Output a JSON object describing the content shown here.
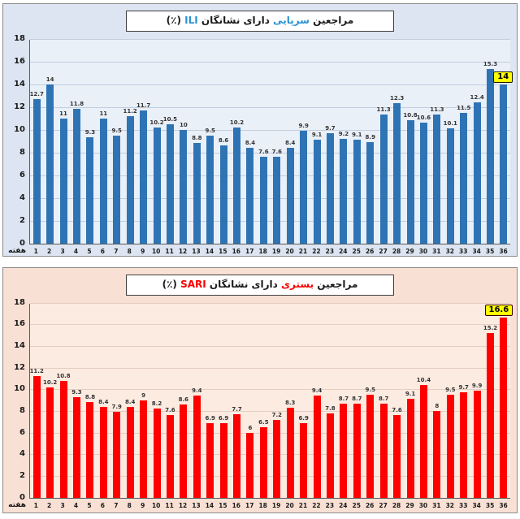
{
  "chart_data": [
    {
      "type": "bar",
      "title_parts": {
        "t1": "مراجعین",
        "t2": "سرپایی",
        "t3": "دارای نشانگان",
        "t4": "ILI",
        "t5": "(٪)"
      },
      "title_plain": "مراجعین سرپایی دارای نشانگان ILI (٪)",
      "accent_color": "#2b93d4",
      "week_label": "هفته",
      "categories": [
        1,
        2,
        3,
        4,
        5,
        6,
        7,
        8,
        9,
        10,
        11,
        12,
        13,
        14,
        15,
        16,
        17,
        18,
        19,
        20,
        21,
        22,
        23,
        24,
        25,
        26,
        27,
        28,
        29,
        30,
        31,
        32,
        33,
        34,
        35,
        36
      ],
      "values": [
        12.7,
        14,
        11,
        11.8,
        9.3,
        11,
        9.5,
        11.2,
        11.7,
        10.2,
        10.5,
        10,
        8.8,
        9.5,
        8.6,
        10.2,
        8.4,
        7.6,
        7.6,
        8.4,
        9.9,
        9.1,
        9.7,
        9.2,
        9.1,
        8.9,
        11.3,
        12.3,
        10.8,
        10.6,
        11.3,
        10.1,
        11.5,
        12.4,
        15.3,
        14
      ],
      "ylim": [
        0,
        18
      ],
      "yticks": [
        0,
        2,
        4,
        6,
        8,
        10,
        12,
        14,
        16,
        18
      ],
      "grid": true,
      "legend_position": "none",
      "xlabel": "هفته",
      "ylabel": "",
      "bar_color": "#2e74b5",
      "panel_bg": "#dce5f1",
      "plot_bg": "#eaf0f8",
      "grid_color": "#c2cedf",
      "highlight": {
        "index": 35,
        "value": 14,
        "bg": "#ffff00",
        "border": "#1a1a00"
      }
    },
    {
      "type": "bar",
      "title_parts": {
        "t1": "مراجعین",
        "t2": "بستری",
        "t3": "دارای نشانگان",
        "t4": "SARI",
        "t5": "(٪)"
      },
      "title_plain": "مراجعین بستری دارای نشانگان SARI (٪)",
      "accent_color": "#ff0000",
      "week_label": "هفته",
      "categories": [
        1,
        2,
        3,
        4,
        5,
        6,
        7,
        8,
        9,
        10,
        11,
        12,
        13,
        14,
        15,
        16,
        17,
        18,
        19,
        20,
        21,
        22,
        23,
        24,
        25,
        26,
        27,
        28,
        29,
        30,
        31,
        32,
        33,
        34,
        35,
        36
      ],
      "values": [
        11.2,
        10.2,
        10.8,
        9.3,
        8.8,
        8.4,
        7.9,
        8.4,
        9,
        8.2,
        7.6,
        8.6,
        9.4,
        6.9,
        6.9,
        7.7,
        6,
        6.5,
        7.2,
        8.3,
        6.9,
        9.4,
        7.8,
        8.7,
        8.7,
        9.5,
        8.7,
        7.6,
        9.1,
        10.4,
        8,
        9.5,
        9.7,
        9.9,
        15.2,
        16.6
      ],
      "ylim": [
        0,
        18
      ],
      "yticks": [
        0,
        2,
        4,
        6,
        8,
        10,
        12,
        14,
        16,
        18
      ],
      "grid": true,
      "legend_position": "none",
      "xlabel": "هفته",
      "ylabel": "",
      "bar_color": "#fe0000",
      "panel_bg": "#f9e0d4",
      "plot_bg": "#fcebe1",
      "grid_color": "#e4cdc2",
      "highlight": {
        "index": 35,
        "value": 16.6,
        "bg": "#ffff00",
        "border": "#3a0000"
      }
    }
  ]
}
